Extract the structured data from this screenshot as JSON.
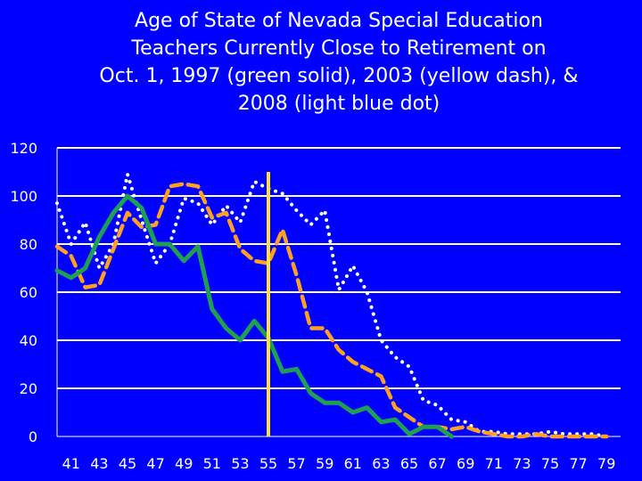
{
  "chart_data": {
    "type": "line",
    "title_lines": [
      "Age of State of Nevada Special Education",
      "Teachers Currently Close to Retirement on",
      "Oct. 1, 1997 (green solid), 2003 (yellow dash), &",
      "2008 (light blue dot)"
    ],
    "xlabel": "",
    "ylabel": "",
    "ylim": [
      0,
      120
    ],
    "yticks": [
      0,
      20,
      40,
      60,
      80,
      100,
      120
    ],
    "xlim": [
      40,
      80
    ],
    "xtick_labels": [
      "41",
      "43",
      "45",
      "47",
      "49",
      "51",
      "53",
      "55",
      "57",
      "59",
      "61",
      "63",
      "65",
      "67",
      "69",
      "71",
      "73",
      "75",
      "77",
      "79"
    ],
    "grid": "horizontal",
    "legend": "none",
    "reference_line": {
      "x": 55,
      "y_from": 0,
      "y_to": 110,
      "color": "#FFE033"
    },
    "series": [
      {
        "color": "#1FA050",
        "style": "solid",
        "x": [
          40,
          41,
          42,
          43,
          44,
          45,
          46,
          47,
          48,
          49,
          50,
          51,
          52,
          53,
          54,
          55,
          56,
          57,
          58,
          59,
          60,
          61,
          62,
          63,
          64,
          65,
          66,
          67,
          68
        ],
        "values": [
          69,
          66,
          70,
          83,
          93,
          100,
          95,
          80,
          80,
          73,
          79,
          53,
          45,
          40,
          48,
          41,
          27,
          28,
          18,
          14,
          14,
          10,
          12,
          6,
          7,
          1,
          4,
          4,
          0
        ]
      },
      {
        "color": "#FFA020",
        "style": "dash",
        "x": [
          40,
          41,
          42,
          43,
          44,
          45,
          46,
          47,
          48,
          49,
          50,
          51,
          52,
          53,
          54,
          55,
          56,
          57,
          58,
          59,
          60,
          61,
          62,
          63,
          64,
          65,
          66,
          67,
          68,
          69,
          70,
          71,
          72,
          73,
          74,
          75,
          76,
          77,
          78,
          79
        ],
        "values": [
          79,
          75,
          62,
          63,
          78,
          93,
          87,
          88,
          104,
          105,
          104,
          91,
          93,
          78,
          73,
          72,
          86,
          67,
          45,
          45,
          36,
          31,
          28,
          25,
          12,
          8,
          4,
          4,
          3,
          4,
          2,
          1,
          0,
          0,
          1,
          0,
          0,
          0,
          0,
          0
        ]
      },
      {
        "color": "#FFFFFF",
        "style": "dot",
        "x": [
          40,
          41,
          42,
          43,
          44,
          45,
          46,
          47,
          48,
          49,
          50,
          51,
          52,
          53,
          54,
          55,
          56,
          57,
          58,
          59,
          60,
          61,
          62,
          63,
          64,
          65,
          66,
          67,
          68,
          69,
          70,
          71,
          72,
          73,
          74,
          75,
          76,
          77,
          78,
          79
        ],
        "values": [
          97,
          80,
          89,
          70,
          80,
          109,
          90,
          72,
          80,
          99,
          97,
          88,
          96,
          89,
          106,
          103,
          101,
          94,
          88,
          94,
          61,
          71,
          60,
          40,
          33,
          29,
          15,
          13,
          7,
          6,
          2,
          2,
          1,
          1,
          1,
          2,
          1,
          1,
          1,
          0
        ]
      }
    ]
  }
}
